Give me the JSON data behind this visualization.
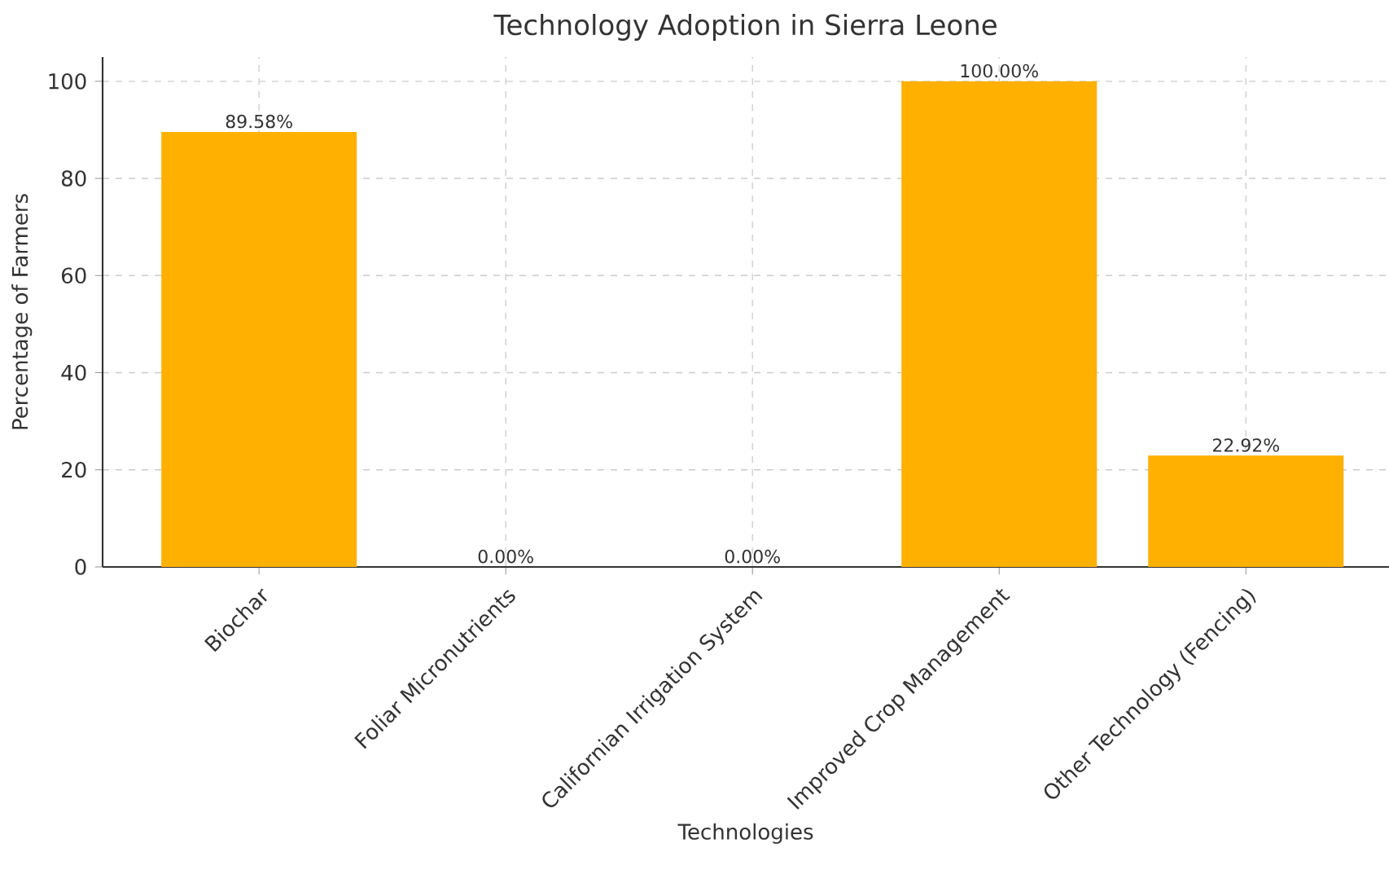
{
  "chart_data": {
    "type": "bar",
    "title": "Technology Adoption in Sierra Leone",
    "xlabel": "Technologies",
    "ylabel": "Percentage of Farmers",
    "categories": [
      "Biochar",
      "Foliar Micronutrients",
      "Californian Irrigation System",
      "Improved Crop Management",
      "Other Technology (Fencing)"
    ],
    "values": [
      89.58,
      0,
      0,
      100,
      22.92
    ],
    "value_labels": [
      "89.58%",
      "0.00%",
      "0.00%",
      "100.00%",
      "22.92%"
    ],
    "color": "#ffb000",
    "ylim": [
      0,
      105
    ],
    "yticks": [
      0,
      20,
      40,
      60,
      80,
      100
    ],
    "grid": true
  }
}
